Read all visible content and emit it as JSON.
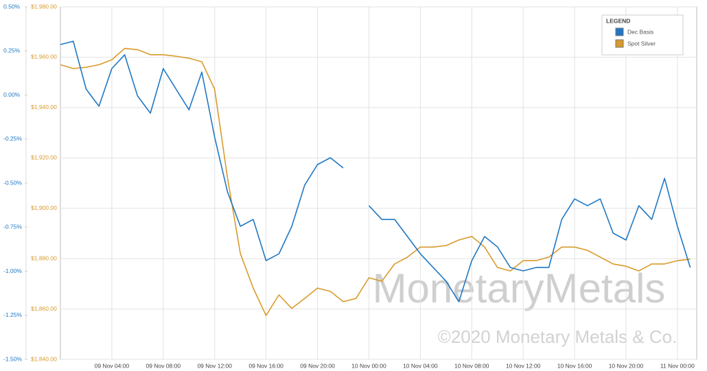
{
  "chart_data": {
    "type": "line",
    "x": [
      "09 Nov 00:00",
      "09 Nov 01:00",
      "09 Nov 02:00",
      "09 Nov 03:00",
      "09 Nov 04:00",
      "09 Nov 05:00",
      "09 Nov 06:00",
      "09 Nov 07:00",
      "09 Nov 08:00",
      "09 Nov 09:00",
      "09 Nov 10:00",
      "09 Nov 11:00",
      "09 Nov 12:00",
      "09 Nov 13:00",
      "09 Nov 14:00",
      "09 Nov 15:00",
      "09 Nov 16:00",
      "09 Nov 17:00",
      "09 Nov 18:00",
      "09 Nov 19:00",
      "09 Nov 20:00",
      "09 Nov 21:00",
      "09 Nov 22:00",
      "09 Nov 23:00",
      "10 Nov 00:00",
      "10 Nov 01:00",
      "10 Nov 02:00",
      "10 Nov 03:00",
      "10 Nov 04:00",
      "10 Nov 05:00",
      "10 Nov 06:00",
      "10 Nov 07:00",
      "10 Nov 08:00",
      "10 Nov 09:00",
      "10 Nov 10:00",
      "10 Nov 11:00",
      "10 Nov 12:00",
      "10 Nov 13:00",
      "10 Nov 14:00",
      "10 Nov 15:00",
      "10 Nov 16:00",
      "10 Nov 17:00",
      "10 Nov 18:00",
      "10 Nov 19:00",
      "10 Nov 20:00",
      "10 Nov 21:00",
      "10 Nov 22:00",
      "10 Nov 23:00",
      "11 Nov 00:00",
      "11 Nov 01:00"
    ],
    "xlim": [
      "09 Nov 00:00",
      "11 Nov 01:30"
    ],
    "xticks": [
      "09 Nov 04:00",
      "09 Nov 08:00",
      "09 Nov 12:00",
      "09 Nov 16:00",
      "09 Nov 20:00",
      "10 Nov 00:00",
      "10 Nov 04:00",
      "10 Nov 08:00",
      "10 Nov 12:00",
      "10 Nov 16:00",
      "10 Nov 20:00",
      "11 Nov 00:00"
    ],
    "ylim": [
      -1.5,
      0.5
    ],
    "yticks": [
      {
        "value": -1.5,
        "label": "-1.50%"
      },
      {
        "value": -1.25,
        "label": "-1.25%"
      },
      {
        "value": -1,
        "label": "-1.00%"
      },
      {
        "value": -0.75,
        "label": "-0.75%"
      },
      {
        "value": -0.5,
        "label": "-0.50%"
      },
      {
        "value": -0.25,
        "label": "-0.25%"
      },
      {
        "value": 0,
        "label": "0.00%"
      },
      {
        "value": 0.25,
        "label": "0.25%"
      },
      {
        "value": 0.5,
        "label": "0.50%"
      }
    ],
    "y2lim": [
      1840,
      1980
    ],
    "y2ticks": [
      {
        "value": 1840,
        "label": "$1,840.00"
      },
      {
        "value": 1860,
        "label": "$1,860.00"
      },
      {
        "value": 1880,
        "label": "$1,880.00"
      },
      {
        "value": 1900,
        "label": "$1,900.00"
      },
      {
        "value": 1920,
        "label": "$1,920.00"
      },
      {
        "value": 1940,
        "label": "$1,940.00"
      },
      {
        "value": 1960,
        "label": "$1,960.00"
      },
      {
        "value": 1980,
        "label": "$1,980.00"
      }
    ],
    "grid": true,
    "legend_title": "LEGEND",
    "legend_position": "top-right",
    "annotations": [
      "MonetaryMetals",
      "©2020 Monetary Metals & Co."
    ],
    "series": [
      {
        "name": "Dec Basis",
        "color": "#1f77c4",
        "axis": "y",
        "values": [
          0.286,
          0.305,
          0.033,
          -0.064,
          0.15,
          0.228,
          -0.006,
          -0.103,
          0.15,
          0.033,
          -0.084,
          0.13,
          -0.239,
          -0.551,
          -0.745,
          -0.706,
          -0.94,
          -0.901,
          -0.745,
          -0.512,
          -0.395,
          -0.356,
          -0.414,
          null,
          -0.628,
          -0.706,
          -0.706,
          -0.803,
          -0.901,
          -0.979,
          -1.056,
          -1.173,
          -0.94,
          -0.803,
          -0.862,
          -0.979,
          -0.998,
          -0.979,
          -0.979,
          -0.706,
          -0.59,
          -0.628,
          -0.59,
          -0.784,
          -0.823,
          -0.628,
          -0.706,
          -0.473,
          -0.745,
          -0.979
        ]
      },
      {
        "name": "Spot Silver",
        "color": "#d99a2b",
        "axis": "y2",
        "values": [
          1957,
          1955.5,
          1956,
          1957,
          1959,
          1963.5,
          1963,
          1961,
          1961,
          1960.4,
          1959.6,
          1958.2,
          1947.3,
          1912,
          1882,
          1868.3,
          1857.4,
          1865.6,
          1860.2,
          1864.2,
          1868.3,
          1867,
          1862.9,
          1864.2,
          1872.4,
          1871,
          1877.9,
          1880.6,
          1884.6,
          1884.6,
          1885.2,
          1887.4,
          1888.8,
          1884.6,
          1876.5,
          1875.1,
          1879.2,
          1879.2,
          1880.6,
          1884.6,
          1884.6,
          1883.3,
          1880.6,
          1877.9,
          1877,
          1875.1,
          1877.9,
          1877.9,
          1879.2,
          1879.8
        ]
      }
    ]
  }
}
